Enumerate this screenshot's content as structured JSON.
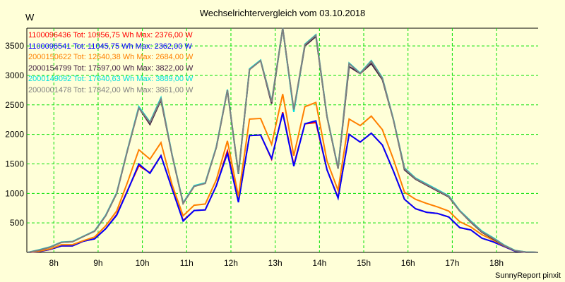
{
  "chart_data": {
    "type": "line",
    "title": "Wechselrichtervergleich vom 03.10.2018",
    "ylabel": "W",
    "xlabel": "",
    "footer": "SunnyReport pinxit",
    "ylim": [
      0,
      3800
    ],
    "xlim": [
      7.39,
      18.94
    ],
    "x_start": 7.42,
    "x_step": 0.25,
    "yticks": [
      500,
      1000,
      1500,
      2000,
      2500,
      3000,
      3500
    ],
    "xticks": [
      8,
      9,
      10,
      11,
      12,
      13,
      14,
      15,
      16,
      17,
      18
    ],
    "xtick_labels": [
      "8h",
      "9h",
      "10h",
      "11h",
      "12h",
      "13h",
      "14h",
      "15h",
      "16h",
      "17h",
      "18h"
    ],
    "grid": true,
    "legend_position": "top-left",
    "series": [
      {
        "name": "1100096436 Tot: 10956,75 Wh Max: 2376,00 W",
        "color": "#ff0000",
        "values": [
          0,
          15,
          50,
          110,
          110,
          190,
          230,
          400,
          640,
          1060,
          1470,
          1350,
          1640,
          1080,
          540,
          710,
          720,
          1130,
          1720,
          860,
          1980,
          1990,
          1580,
          2376,
          1480,
          2180,
          2200,
          1400,
          930,
          2000,
          1870,
          2020,
          1820,
          1380,
          900,
          740,
          680,
          660,
          600,
          420,
          380,
          240,
          180,
          100,
          20,
          3,
          0
        ]
      },
      {
        "name": "1100096541 Tot: 11045,75 Wh Max: 2362,00 W",
        "color": "#0000ff",
        "values": [
          0,
          15,
          50,
          110,
          110,
          190,
          230,
          400,
          630,
          1050,
          1500,
          1340,
          1640,
          1080,
          530,
          710,
          720,
          1130,
          1680,
          850,
          1980,
          1990,
          1590,
          2362,
          1460,
          2180,
          2230,
          1400,
          920,
          2000,
          1870,
          2020,
          1820,
          1380,
          900,
          740,
          680,
          660,
          600,
          420,
          380,
          240,
          180,
          100,
          20,
          3,
          0
        ]
      },
      {
        "name": "2000150622 Tot: 12640,38 Wh Max: 2684,00 W",
        "color": "#ff8000",
        "values": [
          0,
          20,
          60,
          130,
          130,
          200,
          260,
          450,
          700,
          1200,
          1740,
          1580,
          1860,
          1150,
          620,
          800,
          820,
          1230,
          1890,
          950,
          2260,
          2270,
          1830,
          2684,
          1640,
          2470,
          2540,
          1550,
          1050,
          2260,
          2150,
          2310,
          2080,
          1580,
          1020,
          900,
          830,
          770,
          700,
          520,
          430,
          300,
          210,
          110,
          30,
          5,
          0
        ]
      },
      {
        "name": "2000154799 Tot: 17597,00 Wh Max: 3822,00 W",
        "color": "#402040",
        "values": [
          0,
          40,
          90,
          170,
          180,
          270,
          360,
          620,
          1000,
          1750,
          2450,
          2170,
          2580,
          1650,
          830,
          1120,
          1170,
          1780,
          2750,
          1330,
          3100,
          3250,
          2520,
          3822,
          2400,
          3500,
          3660,
          2300,
          1420,
          3150,
          3030,
          3200,
          2930,
          2250,
          1400,
          1240,
          1140,
          1040,
          940,
          700,
          510,
          340,
          230,
          115,
          28,
          5,
          0
        ]
      },
      {
        "name": "2000149092 Tot: 17640,63 Wh Max: 3889,00 W",
        "color": "#00e0e0",
        "values": [
          0,
          45,
          95,
          175,
          185,
          275,
          365,
          630,
          1010,
          1760,
          2470,
          2210,
          2620,
          1660,
          840,
          1130,
          1180,
          1790,
          2760,
          1340,
          3110,
          3260,
          2560,
          3889,
          2380,
          3530,
          3690,
          2310,
          1430,
          3210,
          3040,
          3250,
          2960,
          2260,
          1430,
          1260,
          1160,
          1060,
          960,
          710,
          530,
          360,
          250,
          125,
          32,
          6,
          0
        ]
      },
      {
        "name": "2000001478 Tot: 17842,00 Wh Max: 3861,00 W",
        "color": "#808080",
        "values": [
          0,
          40,
          90,
          170,
          180,
          270,
          360,
          620,
          1000,
          1750,
          2450,
          2200,
          2600,
          1650,
          830,
          1120,
          1170,
          1780,
          2750,
          1350,
          3100,
          3250,
          2550,
          3861,
          2420,
          3520,
          3680,
          2300,
          1420,
          3200,
          3030,
          3240,
          2950,
          2250,
          1420,
          1250,
          1150,
          1050,
          950,
          700,
          520,
          350,
          240,
          120,
          30,
          5,
          0
        ]
      }
    ]
  }
}
